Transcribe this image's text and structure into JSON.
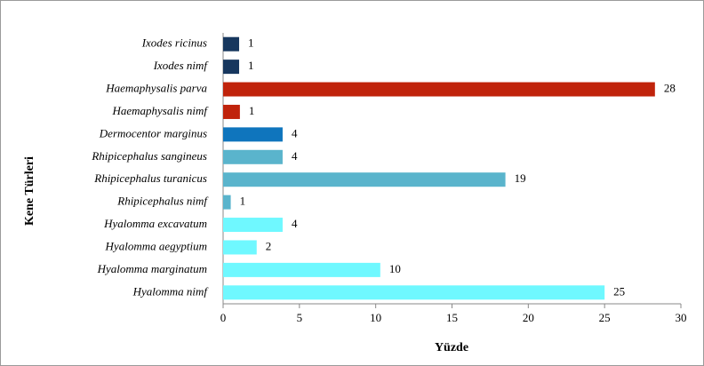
{
  "chart_data": {
    "type": "hbar",
    "xlabel": "Yüzde",
    "ylabel": "Kene Türleri",
    "categories": [
      "Ixodes ricinus",
      "Ixodes nimf",
      "Haemaphysalis parva",
      "Haemaphysalis nimf",
      "Dermocentor marginus",
      "Rhipicephalus sangineus",
      "Rhipicephalus turanicus",
      "Rhipicephalus nimf",
      "Hyalomma excavatum",
      "Hyalomma aegyptium",
      "Hyalomma marginatum",
      "Hyalomma nimf"
    ],
    "values": [
      1.05,
      1.05,
      28.3,
      1.1,
      3.9,
      3.9,
      18.5,
      0.5,
      3.9,
      2.2,
      10.3,
      25.0
    ],
    "value_labels": [
      "1",
      "1",
      "28",
      "1",
      "4",
      "4",
      "19",
      "1",
      "4",
      "2",
      "10",
      "25"
    ],
    "colors": [
      "#17375e",
      "#17375e",
      "#c0230b",
      "#c0230b",
      "#0f75bd",
      "#5ab4cc",
      "#5ab4cc",
      "#5ab4cc",
      "#6ff8ff",
      "#6ff8ff",
      "#6ff8ff",
      "#6ff8ff"
    ],
    "xlim": [
      0,
      30
    ],
    "xticks": [
      0,
      5,
      10,
      15,
      20,
      25,
      30
    ]
  }
}
